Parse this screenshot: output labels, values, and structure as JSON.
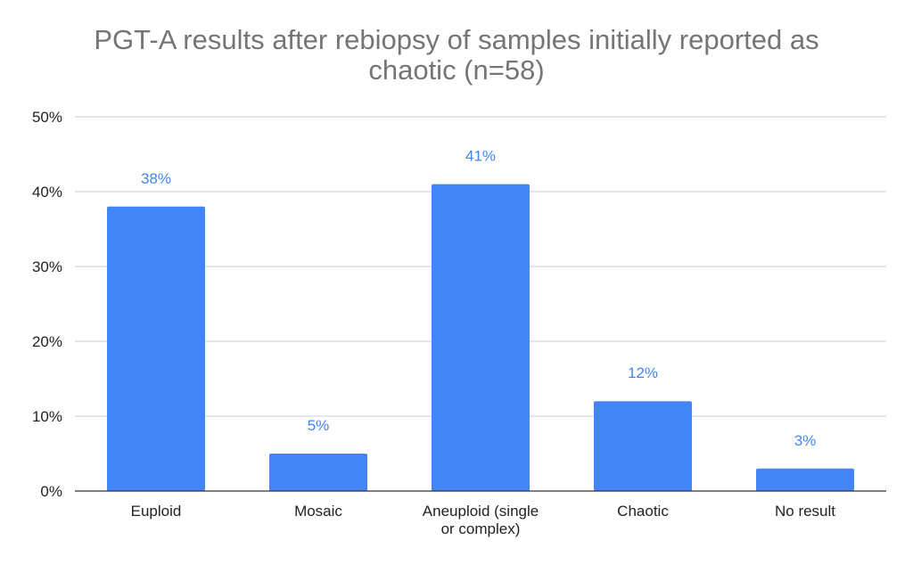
{
  "chart_data": {
    "type": "bar",
    "title_lines": [
      "PGT-A results after rebiopsy of samples initially reported as",
      "chaotic (n=58)"
    ],
    "categories": [
      [
        "Euploid"
      ],
      [
        "Mosaic"
      ],
      [
        "Aneuploid (single",
        "or complex)"
      ],
      [
        "Chaotic"
      ],
      [
        "No result"
      ]
    ],
    "values": [
      38,
      5,
      41,
      12,
      3
    ],
    "data_labels": [
      "38%",
      "5%",
      "41%",
      "12%",
      "3%"
    ],
    "y_ticks": [
      0,
      10,
      20,
      30,
      40,
      50
    ],
    "y_tick_labels": [
      "0%",
      "10%",
      "20%",
      "30%",
      "40%",
      "50%"
    ],
    "ylim": [
      0,
      50
    ],
    "xlabel": "",
    "ylabel": "",
    "grid": true,
    "legend": "none",
    "bar_color": "#4285f4",
    "label_color": "#4285f4",
    "grid_color": "#cccccc",
    "axis_color": "#333333"
  }
}
